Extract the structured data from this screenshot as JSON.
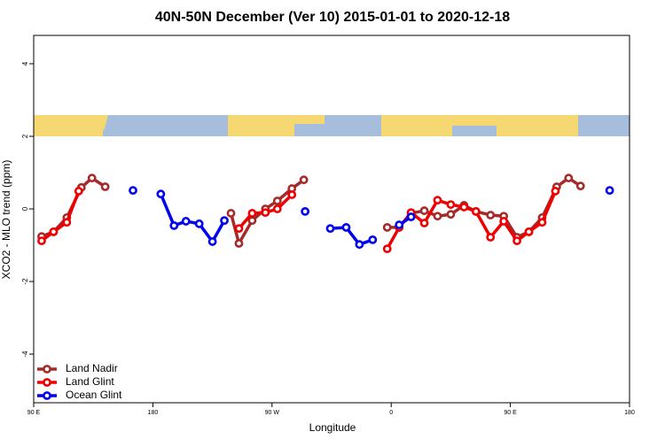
{
  "chart_data": {
    "type": "line",
    "title": "40N-50N December (Ver 10)   2015-01-01 to 2020-12-18",
    "x_label": "Longitude",
    "y_label": "XCO2 - MLO trend (ppm)",
    "xlim": [
      90,
      540
    ],
    "ylim": [
      -5.34,
      4.78
    ],
    "xticks": [
      {
        "value": 90,
        "label": "90 E"
      },
      180,
      {
        "value": 270,
        "label": "90 W"
      },
      {
        "value": 360,
        "label": "0"
      },
      {
        "value": 450,
        "label": "90 E"
      },
      {
        "value": 540,
        "label": "180"
      }
    ],
    "yticks": [
      -4,
      -2,
      0,
      2,
      4
    ],
    "legend": "bottom-left",
    "series": [
      {
        "name": "Land Nadir",
        "color": "#a52a2a",
        "x": [
          96,
          105,
          115,
          126,
          134,
          144,
          null,
          239,
          245,
          255,
          265,
          274,
          285,
          294,
          null,
          357,
          366,
          375,
          385,
          395,
          405,
          415,
          424,
          435,
          445,
          455,
          464,
          474,
          485,
          494,
          503
        ],
        "values": [
          -0.76,
          -0.63,
          -0.24,
          0.59,
          0.85,
          0.61,
          null,
          -0.12,
          -0.95,
          -0.32,
          0,
          0.22,
          0.56,
          0.8,
          null,
          -0.51,
          -0.51,
          -0.12,
          -0.05,
          -0.2,
          -0.15,
          0.1,
          -0.07,
          -0.17,
          -0.2,
          -0.78,
          -0.63,
          -0.24,
          0.61,
          0.85,
          0.63
        ]
      },
      {
        "name": "Land Glint",
        "color": "#ee0000",
        "x": [
          96,
          105,
          115,
          124,
          null,
          245,
          255,
          265,
          274,
          285,
          null,
          357,
          366,
          375,
          385,
          395,
          405,
          415,
          424,
          435,
          445,
          455,
          464,
          474,
          484
        ],
        "values": [
          -0.88,
          -0.63,
          -0.37,
          0.49,
          null,
          -0.54,
          -0.12,
          -0.1,
          0,
          0.39,
          null,
          -1.1,
          -0.51,
          -0.1,
          -0.39,
          0.24,
          0.12,
          0.05,
          -0.07,
          -0.78,
          -0.34,
          -0.88,
          -0.63,
          -0.37,
          0.49
        ]
      },
      {
        "name": "Ocean Glint",
        "color": "#0000ee",
        "x": [
          165,
          null,
          186,
          196,
          205,
          215,
          225,
          234,
          null,
          295,
          null,
          314,
          326,
          336,
          346,
          null,
          366,
          375,
          null,
          525
        ],
        "values": [
          0.51,
          null,
          0.41,
          -0.46,
          -0.34,
          -0.41,
          -0.9,
          -0.32,
          null,
          -0.07,
          null,
          -0.54,
          -0.51,
          -0.98,
          -0.85,
          null,
          -0.44,
          -0.22,
          null,
          0.51
        ]
      }
    ]
  }
}
